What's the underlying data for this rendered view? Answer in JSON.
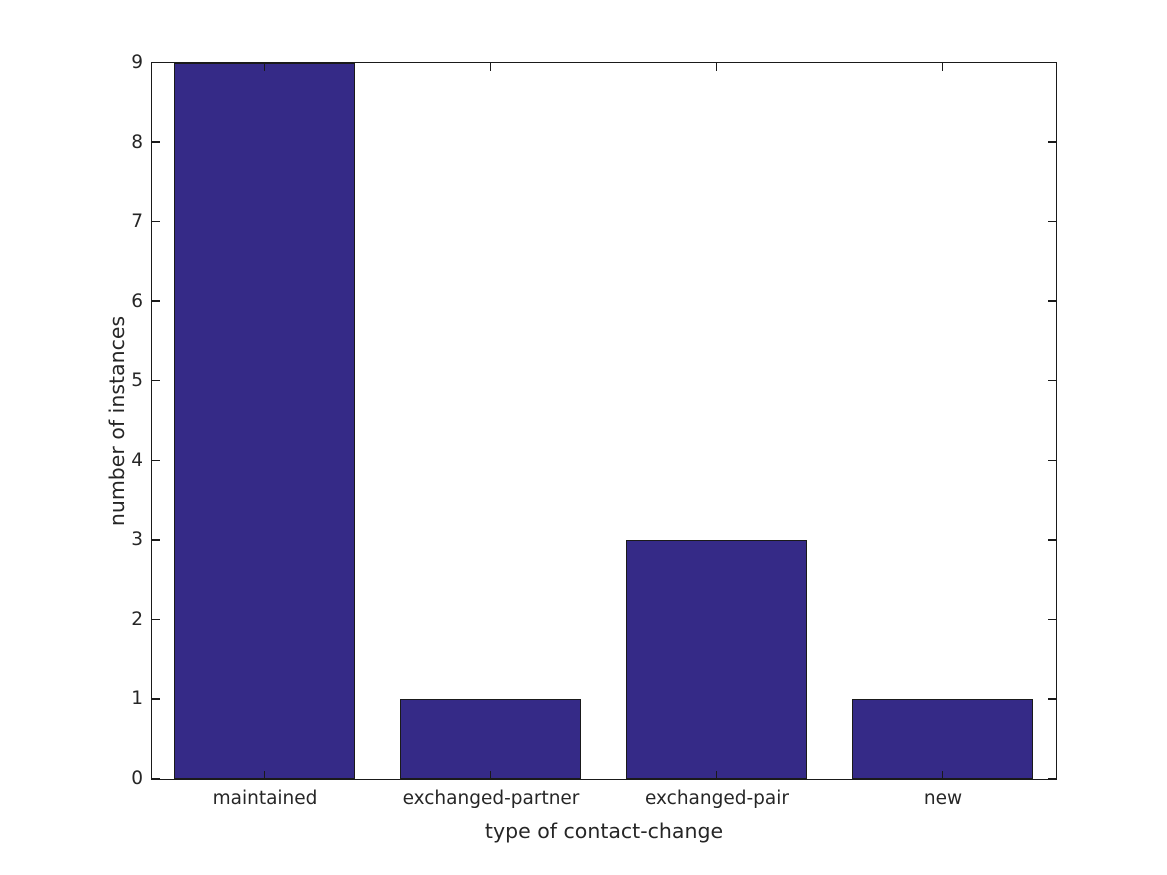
{
  "chart_data": {
    "type": "bar",
    "categories": [
      "maintained",
      "exchanged-partner",
      "exchanged-pair",
      "new"
    ],
    "values": [
      9,
      1,
      3,
      1
    ],
    "title": "",
    "xlabel": "type of contact-change",
    "ylabel": "number of instances",
    "ylim": [
      0,
      9
    ],
    "yticks": [
      0,
      1,
      2,
      3,
      4,
      5,
      6,
      7,
      8,
      9
    ],
    "grid": false,
    "legend_position": "none",
    "box": true,
    "tick_direction": "in",
    "bar_width_fraction": 0.8,
    "bar_color": "#352A87",
    "bar_edge_color": "#1a1a1a",
    "axis_color": "#1a1a1a",
    "tick_label_color": "#262626",
    "axis_label_color": "#262626",
    "background_color": "#ffffff"
  }
}
